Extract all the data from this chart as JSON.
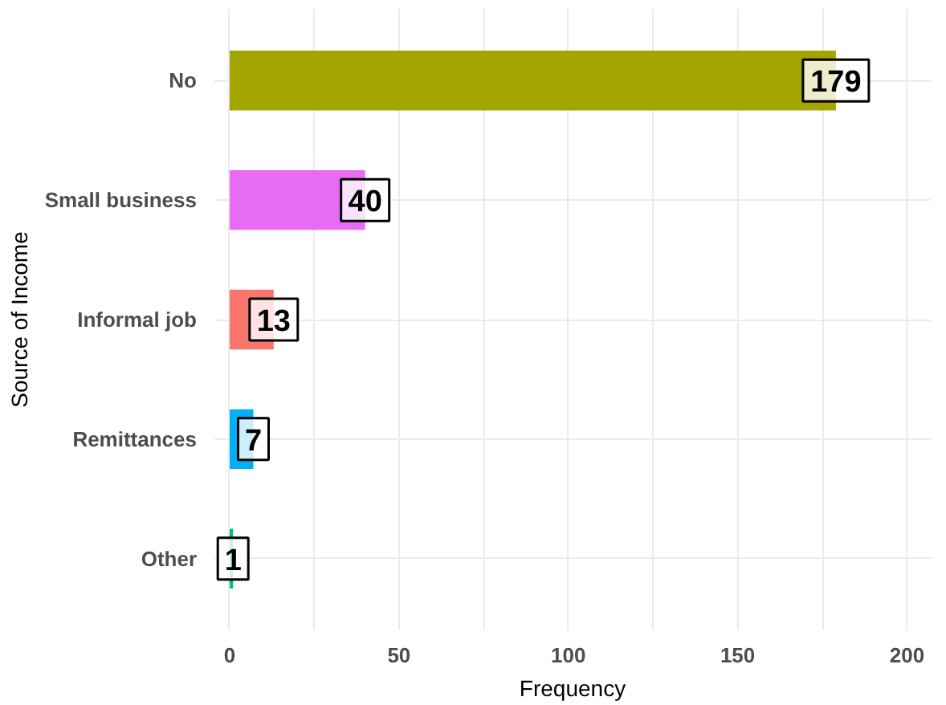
{
  "chart_data": {
    "type": "bar",
    "orientation": "horizontal",
    "xlabel": "Frequency",
    "ylabel": "Source of Income",
    "categories": [
      "No",
      "Small business",
      "Informal job",
      "Remittances",
      "Other"
    ],
    "values": [
      179,
      40,
      13,
      7,
      1
    ],
    "colors": [
      "#a3a500",
      "#e76bf3",
      "#f8766d",
      "#00b0f6",
      "#00bf7d"
    ],
    "xlim": [
      -4.5,
      207
    ],
    "xticks": [
      0,
      {
        "value": 25,
        "label": null
      },
      50,
      {
        "value": 75,
        "label": null
      },
      100,
      {
        "value": 125,
        "label": null
      },
      150,
      {
        "value": 175,
        "label": null
      },
      200
    ],
    "grid": true,
    "data_labels": true
  }
}
